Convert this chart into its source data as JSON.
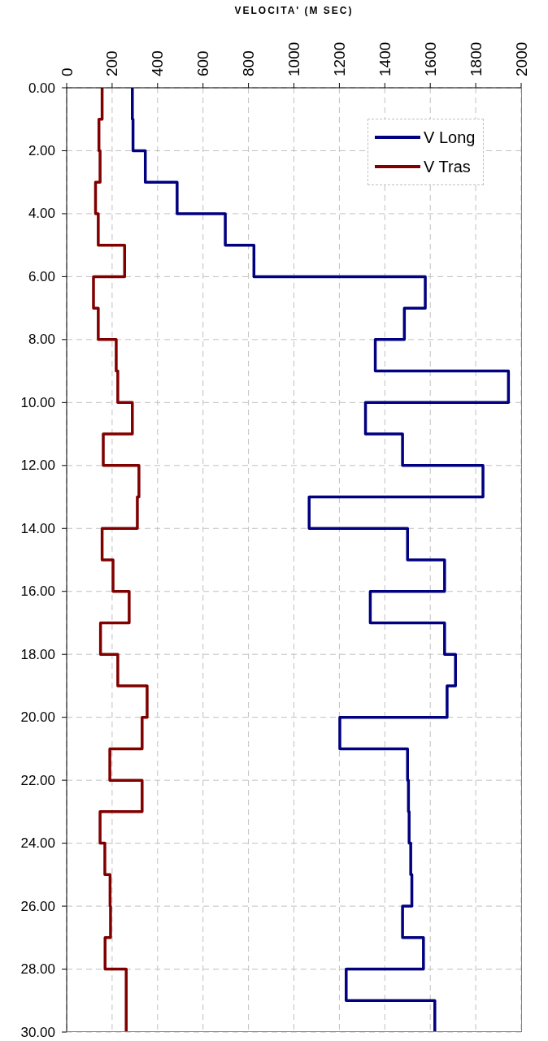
{
  "chart_data": {
    "type": "step",
    "orientation": "horizontal",
    "xlabel": "VELOCITA' (M SEC)",
    "x": [
      0,
      1,
      2,
      3,
      4,
      5,
      6,
      7,
      8,
      9,
      10,
      11,
      12,
      13,
      14,
      15,
      16,
      17,
      18,
      19,
      20,
      21,
      22,
      23,
      24,
      25,
      26,
      27,
      28,
      29,
      30
    ],
    "series": [
      {
        "name": "V Long",
        "color": "#000080",
        "values": [
          289,
          292,
          346,
          486,
          698,
          824,
          1578,
          1486,
          1358,
          1944,
          1315,
          1478,
          1832,
          1067,
          1500,
          1663,
          1336,
          1663,
          1711,
          1674,
          1202,
          1500,
          1504,
          1507,
          1514,
          1519,
          1478,
          1570,
          1230,
          1620,
          1620
        ]
      },
      {
        "name": "V Tras",
        "color": "#800000",
        "values": [
          156,
          142,
          147,
          127,
          139,
          255,
          118,
          139,
          218,
          225,
          289,
          161,
          318,
          311,
          156,
          204,
          275,
          149,
          225,
          354,
          332,
          190,
          332,
          147,
          168,
          191,
          193,
          169,
          262,
          262,
          262
        ]
      }
    ],
    "xlim": [
      0,
      2000
    ],
    "xticks": [
      0,
      200,
      400,
      600,
      800,
      1000,
      1200,
      1400,
      1600,
      1800,
      2000
    ],
    "ylim": [
      30,
      0
    ],
    "yticks": [
      {
        "value": 0,
        "label": "0.00"
      },
      {
        "value": 2,
        "label": "2.00"
      },
      {
        "value": 4,
        "label": "4.00"
      },
      {
        "value": 6,
        "label": "6.00"
      },
      {
        "value": 8,
        "label": "8.00"
      },
      {
        "value": 10,
        "label": "10.00"
      },
      {
        "value": 12,
        "label": "12.00"
      },
      {
        "value": 14,
        "label": "14.00"
      },
      {
        "value": 16,
        "label": "16.00"
      },
      {
        "value": 18,
        "label": "18.00"
      },
      {
        "value": 20,
        "label": "20.00"
      },
      {
        "value": 22,
        "label": "22.00"
      },
      {
        "value": 24,
        "label": "24.00"
      },
      {
        "value": 26,
        "label": "26.00"
      },
      {
        "value": 28,
        "label": "28.00"
      },
      {
        "value": 30,
        "label": "30.00"
      }
    ],
    "grid": true,
    "legend": "top right",
    "line_style": "solid",
    "marker": "none"
  }
}
